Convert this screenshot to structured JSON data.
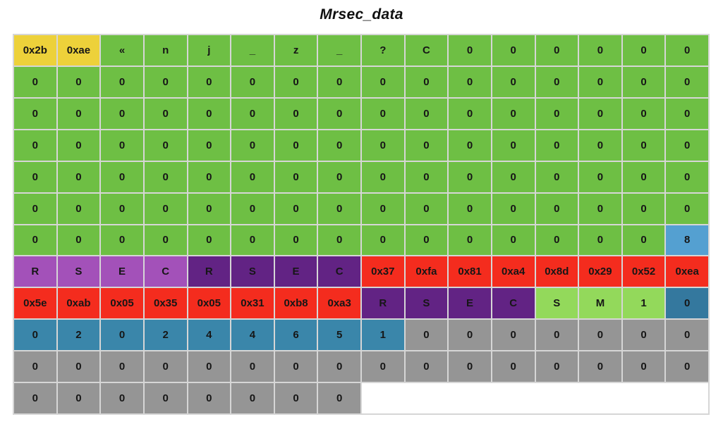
{
  "chart_data": {
    "type": "table",
    "title": "Mrsec_data",
    "columns": 16,
    "palette": {
      "Y": "#edd13a",
      "G": "#6ebf44",
      "LP": "#a351b9",
      "DP": "#622384",
      "R": "#f42c1e",
      "LB": "#54a0d1",
      "B": "#3a86aa",
      "DB": "#34789e",
      "LG": "#93d95b",
      "GY": "#959595",
      "W": "#ffffff"
    },
    "color_legend": {
      "Y": "yellow",
      "G": "green",
      "LP": "purple-light",
      "DP": "purple-dark",
      "R": "red",
      "LB": "blue-light",
      "B": "blue",
      "DB": "blue-dark",
      "LG": "green-light",
      "GY": "gray",
      "W": "empty-white"
    },
    "rows": [
      [
        [
          "0x2b",
          "Y"
        ],
        [
          "0xae",
          "Y"
        ],
        [
          "«",
          "G"
        ],
        [
          "n",
          "G"
        ],
        [
          "j",
          "G"
        ],
        [
          "_",
          "G"
        ],
        [
          "z",
          "G"
        ],
        [
          "_",
          "G"
        ],
        [
          "?",
          "G"
        ],
        [
          "C",
          "G"
        ],
        [
          "0",
          "G"
        ],
        [
          "0",
          "G"
        ],
        [
          "0",
          "G"
        ],
        [
          "0",
          "G"
        ],
        [
          "0",
          "G"
        ],
        [
          "0",
          "G"
        ]
      ],
      [
        [
          "0",
          "G"
        ],
        [
          "0",
          "G"
        ],
        [
          "0",
          "G"
        ],
        [
          "0",
          "G"
        ],
        [
          "0",
          "G"
        ],
        [
          "0",
          "G"
        ],
        [
          "0",
          "G"
        ],
        [
          "0",
          "G"
        ],
        [
          "0",
          "G"
        ],
        [
          "0",
          "G"
        ],
        [
          "0",
          "G"
        ],
        [
          "0",
          "G"
        ],
        [
          "0",
          "G"
        ],
        [
          "0",
          "G"
        ],
        [
          "0",
          "G"
        ],
        [
          "0",
          "G"
        ]
      ],
      [
        [
          "0",
          "G"
        ],
        [
          "0",
          "G"
        ],
        [
          "0",
          "G"
        ],
        [
          "0",
          "G"
        ],
        [
          "0",
          "G"
        ],
        [
          "0",
          "G"
        ],
        [
          "0",
          "G"
        ],
        [
          "0",
          "G"
        ],
        [
          "0",
          "G"
        ],
        [
          "0",
          "G"
        ],
        [
          "0",
          "G"
        ],
        [
          "0",
          "G"
        ],
        [
          "0",
          "G"
        ],
        [
          "0",
          "G"
        ],
        [
          "0",
          "G"
        ],
        [
          "0",
          "G"
        ]
      ],
      [
        [
          "0",
          "G"
        ],
        [
          "0",
          "G"
        ],
        [
          "0",
          "G"
        ],
        [
          "0",
          "G"
        ],
        [
          "0",
          "G"
        ],
        [
          "0",
          "G"
        ],
        [
          "0",
          "G"
        ],
        [
          "0",
          "G"
        ],
        [
          "0",
          "G"
        ],
        [
          "0",
          "G"
        ],
        [
          "0",
          "G"
        ],
        [
          "0",
          "G"
        ],
        [
          "0",
          "G"
        ],
        [
          "0",
          "G"
        ],
        [
          "0",
          "G"
        ],
        [
          "0",
          "G"
        ]
      ],
      [
        [
          "0",
          "G"
        ],
        [
          "0",
          "G"
        ],
        [
          "0",
          "G"
        ],
        [
          "0",
          "G"
        ],
        [
          "0",
          "G"
        ],
        [
          "0",
          "G"
        ],
        [
          "0",
          "G"
        ],
        [
          "0",
          "G"
        ],
        [
          "0",
          "G"
        ],
        [
          "0",
          "G"
        ],
        [
          "0",
          "G"
        ],
        [
          "0",
          "G"
        ],
        [
          "0",
          "G"
        ],
        [
          "0",
          "G"
        ],
        [
          "0",
          "G"
        ],
        [
          "0",
          "G"
        ]
      ],
      [
        [
          "0",
          "G"
        ],
        [
          "0",
          "G"
        ],
        [
          "0",
          "G"
        ],
        [
          "0",
          "G"
        ],
        [
          "0",
          "G"
        ],
        [
          "0",
          "G"
        ],
        [
          "0",
          "G"
        ],
        [
          "0",
          "G"
        ],
        [
          "0",
          "G"
        ],
        [
          "0",
          "G"
        ],
        [
          "0",
          "G"
        ],
        [
          "0",
          "G"
        ],
        [
          "0",
          "G"
        ],
        [
          "0",
          "G"
        ],
        [
          "0",
          "G"
        ],
        [
          "0",
          "G"
        ]
      ],
      [
        [
          "0",
          "G"
        ],
        [
          "0",
          "G"
        ],
        [
          "0",
          "G"
        ],
        [
          "0",
          "G"
        ],
        [
          "0",
          "G"
        ],
        [
          "0",
          "G"
        ],
        [
          "0",
          "G"
        ],
        [
          "0",
          "G"
        ],
        [
          "0",
          "G"
        ],
        [
          "0",
          "G"
        ],
        [
          "0",
          "G"
        ],
        [
          "0",
          "G"
        ],
        [
          "0",
          "G"
        ],
        [
          "0",
          "G"
        ],
        [
          "0",
          "G"
        ],
        [
          "8",
          "LB"
        ]
      ],
      [
        [
          "R",
          "LP"
        ],
        [
          "S",
          "LP"
        ],
        [
          "E",
          "LP"
        ],
        [
          "C",
          "LP"
        ],
        [
          "R",
          "DP"
        ],
        [
          "S",
          "DP"
        ],
        [
          "E",
          "DP"
        ],
        [
          "C",
          "DP"
        ],
        [
          "0x37",
          "R"
        ],
        [
          "0xfa",
          "R"
        ],
        [
          "0x81",
          "R"
        ],
        [
          "0xa4",
          "R"
        ],
        [
          "0x8d",
          "R"
        ],
        [
          "0x29",
          "R"
        ],
        [
          "0x52",
          "R"
        ],
        [
          "0xea",
          "R"
        ]
      ],
      [
        [
          "0x5e",
          "R"
        ],
        [
          "0xab",
          "R"
        ],
        [
          "0x05",
          "R"
        ],
        [
          "0x35",
          "R"
        ],
        [
          "0x05",
          "R"
        ],
        [
          "0x31",
          "R"
        ],
        [
          "0xb8",
          "R"
        ],
        [
          "0xa3",
          "R"
        ],
        [
          "R",
          "DP"
        ],
        [
          "S",
          "DP"
        ],
        [
          "E",
          "DP"
        ],
        [
          "C",
          "DP"
        ],
        [
          "S",
          "LG"
        ],
        [
          "M",
          "LG"
        ],
        [
          "1",
          "LG"
        ],
        [
          "0",
          "DB"
        ]
      ],
      [
        [
          "0",
          "B"
        ],
        [
          "2",
          "B"
        ],
        [
          "0",
          "B"
        ],
        [
          "2",
          "B"
        ],
        [
          "4",
          "B"
        ],
        [
          "4",
          "B"
        ],
        [
          "6",
          "B"
        ],
        [
          "5",
          "B"
        ],
        [
          "1",
          "B"
        ],
        [
          "0",
          "GY"
        ],
        [
          "0",
          "GY"
        ],
        [
          "0",
          "GY"
        ],
        [
          "0",
          "GY"
        ],
        [
          "0",
          "GY"
        ],
        [
          "0",
          "GY"
        ],
        [
          "0",
          "GY"
        ]
      ],
      [
        [
          "0",
          "GY"
        ],
        [
          "0",
          "GY"
        ],
        [
          "0",
          "GY"
        ],
        [
          "0",
          "GY"
        ],
        [
          "0",
          "GY"
        ],
        [
          "0",
          "GY"
        ],
        [
          "0",
          "GY"
        ],
        [
          "0",
          "GY"
        ],
        [
          "0",
          "GY"
        ],
        [
          "0",
          "GY"
        ],
        [
          "0",
          "GY"
        ],
        [
          "0",
          "GY"
        ],
        [
          "0",
          "GY"
        ],
        [
          "0",
          "GY"
        ],
        [
          "0",
          "GY"
        ],
        [
          "0",
          "GY"
        ]
      ],
      [
        [
          "0",
          "GY"
        ],
        [
          "0",
          "GY"
        ],
        [
          "0",
          "GY"
        ],
        [
          "0",
          "GY"
        ],
        [
          "0",
          "GY"
        ],
        [
          "0",
          "GY"
        ],
        [
          "0",
          "GY"
        ],
        [
          "0",
          "GY"
        ],
        [
          "",
          "W",
          8
        ]
      ]
    ]
  }
}
